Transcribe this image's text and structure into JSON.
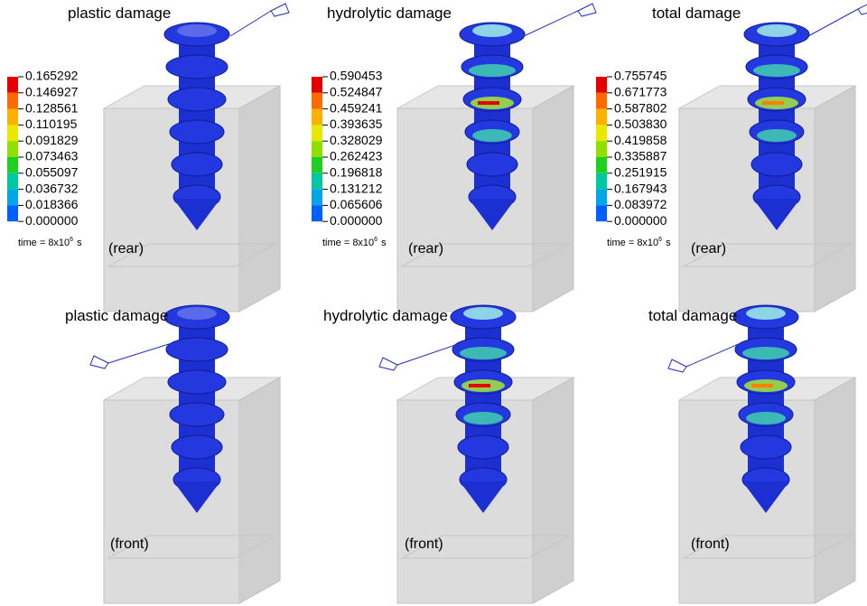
{
  "panels": [
    {
      "title": "plastic damage",
      "view": "(rear)",
      "legend": {
        "values": [
          "0.165292",
          "0.146927",
          "0.128561",
          "0.110195",
          "0.091829",
          "0.073463",
          "0.055097",
          "0.036732",
          "0.018366",
          "0.000000"
        ],
        "time": {
          "prefix": "time = 8x10",
          "exponent": "6",
          "suffix": "s"
        }
      }
    },
    {
      "title": "hydrolytic damage",
      "view": "(rear)",
      "legend": {
        "values": [
          "0.590453",
          "0.524847",
          "0.459241",
          "0.393635",
          "0.328029",
          "0.262423",
          "0.196818",
          "0.131212",
          "0.065606",
          "0.000000"
        ],
        "time": {
          "prefix": "time = 8x10",
          "exponent": "6",
          "suffix": "s"
        }
      }
    },
    {
      "title": "total damage",
      "view": "(rear)",
      "legend": {
        "values": [
          "0.755745",
          "0.671773",
          "0.587802",
          "0.503830",
          "0.419858",
          "0.335887",
          "0.251915",
          "0.167943",
          "0.083972",
          "0.000000"
        ],
        "time": {
          "prefix": "time = 8x10",
          "exponent": "6",
          "suffix": "s"
        }
      }
    },
    {
      "title": "plastic damage",
      "view": "(front)"
    },
    {
      "title": "hydrolytic damage",
      "view": "(front)"
    },
    {
      "title": "total damage",
      "view": "(front)"
    }
  ]
}
